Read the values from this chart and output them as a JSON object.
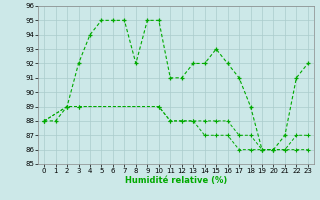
{
  "xlabel": "Humidité relative (%)",
  "bg_color": "#cce8e8",
  "grid_color": "#aacccc",
  "line_color": "#00aa00",
  "marker": "+",
  "ylim": [
    85,
    96
  ],
  "xlim": [
    -0.5,
    23.5
  ],
  "yticks": [
    85,
    86,
    87,
    88,
    89,
    90,
    91,
    92,
    93,
    94,
    95,
    96
  ],
  "xticks": [
    0,
    1,
    2,
    3,
    4,
    5,
    6,
    7,
    8,
    9,
    10,
    11,
    12,
    13,
    14,
    15,
    16,
    17,
    18,
    19,
    20,
    21,
    22,
    23
  ],
  "series1_x": [
    0,
    1,
    2,
    3,
    4,
    5,
    6,
    7,
    8,
    9,
    10,
    11,
    12,
    13,
    14,
    15,
    16,
    17,
    18,
    19,
    20,
    21,
    22,
    23
  ],
  "series1_y": [
    88,
    88,
    89,
    92,
    94,
    95,
    95,
    95,
    92,
    95,
    95,
    91,
    91,
    92,
    92,
    93,
    92,
    91,
    89,
    86,
    86,
    87,
    91,
    92
  ],
  "series2_x": [
    0,
    2,
    3,
    10,
    11,
    12,
    13,
    14,
    15,
    16,
    17,
    18,
    19,
    20,
    21,
    22,
    23
  ],
  "series2_y": [
    88,
    89,
    89,
    89,
    88,
    88,
    88,
    88,
    88,
    88,
    87,
    87,
    86,
    86,
    86,
    87,
    87
  ],
  "series3_x": [
    0,
    2,
    3,
    10,
    11,
    12,
    13,
    14,
    15,
    16,
    17,
    18,
    19,
    20,
    21,
    22,
    23
  ],
  "series3_y": [
    88,
    89,
    89,
    89,
    88,
    88,
    88,
    87,
    87,
    87,
    86,
    86,
    86,
    86,
    86,
    86,
    86
  ]
}
